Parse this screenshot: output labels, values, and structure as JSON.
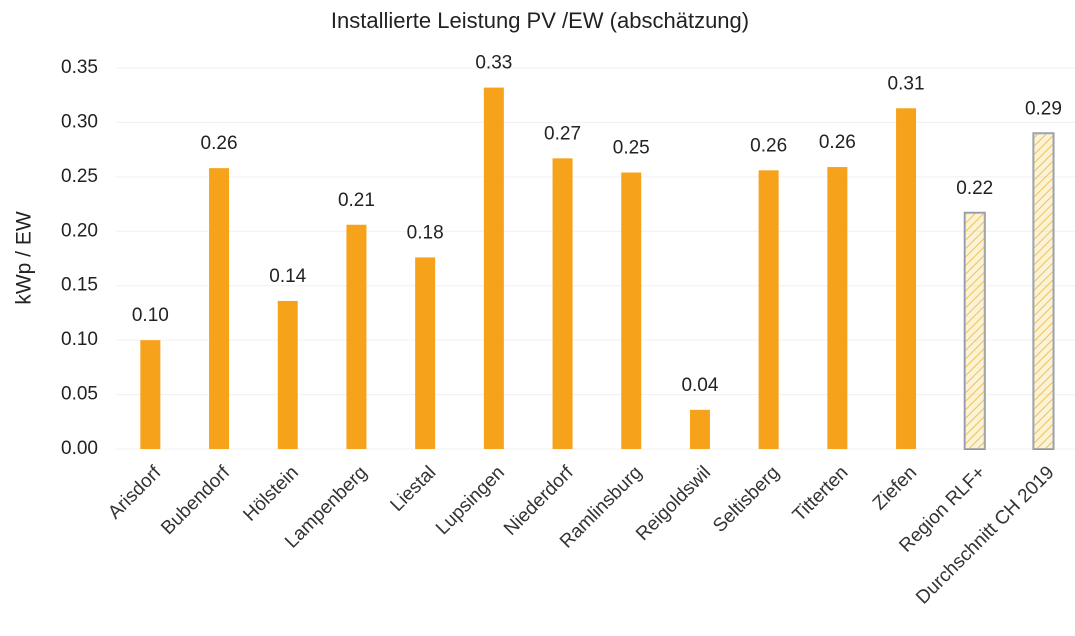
{
  "chart_data": {
    "type": "bar",
    "title": "Installierte Leistung PV /EW (abschätzung)",
    "y_label": "kWp / EW",
    "categories": [
      "Arisdorf",
      "Bubendorf",
      "Hölstein",
      "Lampenberg",
      "Liestal",
      "Lupsingen",
      "Niederdorf",
      "Ramlinsburg",
      "Reigoldswil",
      "Seltisberg",
      "Titterten",
      "Ziefen",
      "Region RLF+",
      "Durchschnitt CH 2019"
    ],
    "values": [
      0.1,
      0.258,
      0.136,
      0.206,
      0.176,
      0.332,
      0.267,
      0.254,
      0.036,
      0.256,
      0.259,
      0.313,
      0.217,
      0.29
    ],
    "value_labels": [
      "0.10",
      "0.26",
      "0.14",
      "0.21",
      "0.18",
      "0.33",
      "0.27",
      "0.25",
      "0.04",
      "0.26",
      "0.26",
      "0.31",
      "0.22",
      "0.29"
    ],
    "colors": [
      "#f7a21b",
      "#f7a21b",
      "#f7a21b",
      "#f7a21b",
      "#f7a21b",
      "#f7a21b",
      "#f7a21b",
      "#f7a21b",
      "#f7a21b",
      "#f7a21b",
      "#f7a21b",
      "#f7a21b",
      "#f5dd8a",
      "#f5dd8a"
    ],
    "hatched": [
      false,
      false,
      false,
      false,
      false,
      false,
      false,
      false,
      false,
      false,
      false,
      false,
      true,
      true
    ],
    "ylim": [
      0,
      0.35
    ],
    "yticks": [
      {
        "value": 0,
        "label": "0.00"
      },
      {
        "value": 0.05,
        "label": "0.05"
      },
      {
        "value": 0.1,
        "label": "0.10"
      },
      {
        "value": 0.15,
        "label": "0.15"
      },
      {
        "value": 0.2,
        "label": "0.20"
      },
      {
        "value": 0.25,
        "label": "0.25"
      },
      {
        "value": 0.3,
        "label": "0.30"
      },
      {
        "value": 0.35,
        "label": "0.35"
      }
    ],
    "grid": true
  }
}
